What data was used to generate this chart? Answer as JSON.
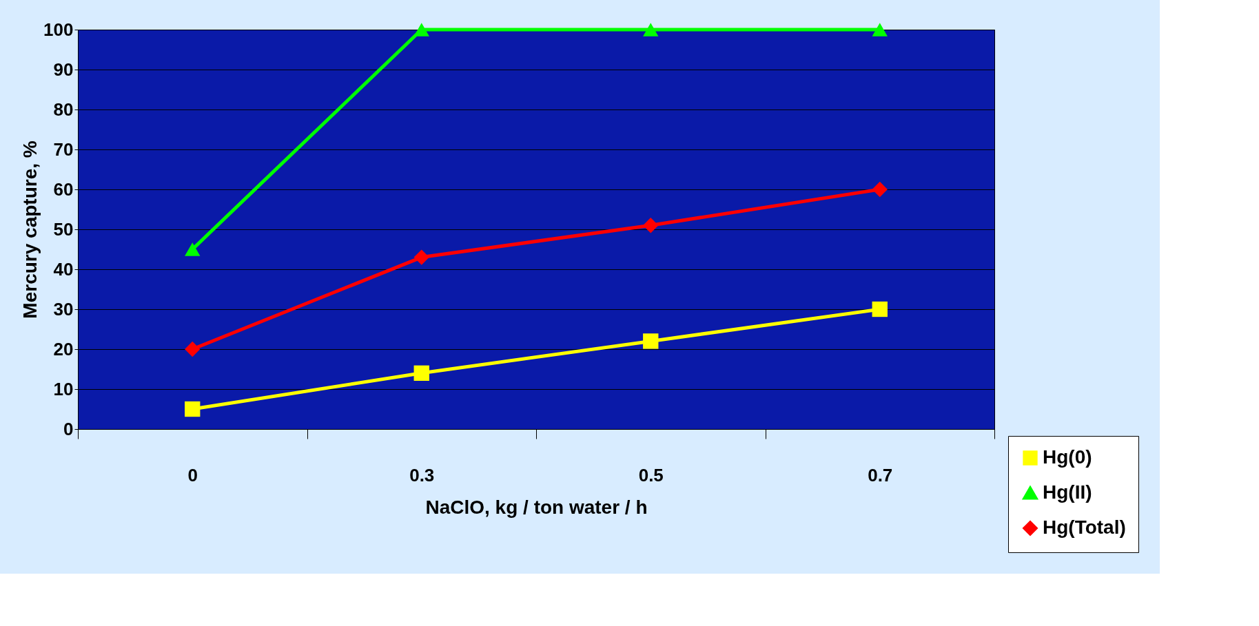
{
  "chart_data": {
    "type": "line",
    "xlabel": "NaClO, kg / ton water / h",
    "ylabel": "Mercury capture, %",
    "categories": [
      "0",
      "0.3",
      "0.5",
      "0.7"
    ],
    "series": [
      {
        "name": "Hg(0)",
        "color": "#ffff00",
        "marker": "square",
        "values": [
          5,
          14,
          22,
          30
        ]
      },
      {
        "name": "Hg(II)",
        "color": "#00ff00",
        "marker": "triangle",
        "values": [
          45,
          100,
          100,
          100
        ]
      },
      {
        "name": "Hg(Total)",
        "color": "#ff0000",
        "marker": "diamond",
        "values": [
          20,
          43,
          51,
          60
        ]
      }
    ],
    "ylim": [
      0,
      100
    ],
    "yticks": [
      0,
      10,
      20,
      30,
      40,
      50,
      60,
      70,
      80,
      90,
      100
    ],
    "grid": "y",
    "legend": "bottom right",
    "line_style": "solid"
  }
}
